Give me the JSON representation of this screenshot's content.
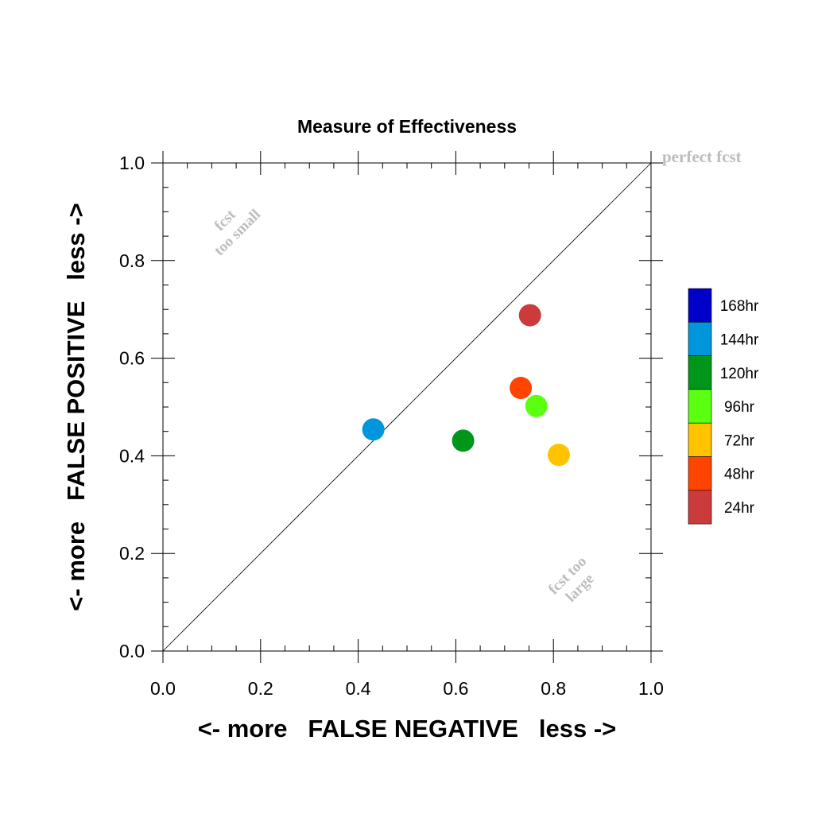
{
  "chart_data": {
    "type": "scatter",
    "title": "Measure of Effectiveness",
    "xlabel": "<- more   FALSE NEGATIVE   less ->",
    "ylabel": "<- more   FALSE POSITIVE   less ->",
    "xlim": [
      0.0,
      1.0
    ],
    "ylim": [
      0.0,
      1.0
    ],
    "xticks": [
      "0.0",
      "0.2",
      "0.4",
      "0.6",
      "0.8",
      "1.0"
    ],
    "yticks": [
      "0.0",
      "0.2",
      "0.4",
      "0.6",
      "0.8",
      "1.0"
    ],
    "grid": false,
    "reference_line": [
      [
        0.0,
        0.0
      ],
      [
        1.0,
        1.0
      ]
    ],
    "annotations": {
      "perfect": "perfect fcst",
      "too_small_line1": "fcst",
      "too_small_line2": "too small",
      "too_large_line1": "fcst too",
      "too_large_line2": "large"
    },
    "legend_position": "right",
    "points": [
      {
        "name": "24hr",
        "x": 0.752,
        "y": 0.688,
        "color": "#cc3b3b"
      },
      {
        "name": "48hr",
        "x": 0.733,
        "y": 0.539,
        "color": "#ff4400"
      },
      {
        "name": "72hr",
        "x": 0.811,
        "y": 0.402,
        "color": "#ffc300"
      },
      {
        "name": "96hr",
        "x": 0.765,
        "y": 0.502,
        "color": "#5bff10"
      },
      {
        "name": "120hr",
        "x": 0.615,
        "y": 0.431,
        "color": "#00961a"
      },
      {
        "name": "144hr",
        "x": 0.431,
        "y": 0.454,
        "color": "#0096dc"
      },
      {
        "name": "168hr",
        "x": null,
        "y": null,
        "color": "#0000c8"
      }
    ],
    "legend": [
      {
        "label": "168hr",
        "color": "#0000c8"
      },
      {
        "label": "144hr",
        "color": "#0096dc"
      },
      {
        "label": "120hr",
        "color": "#00961a"
      },
      {
        "label": "96hr",
        "color": "#5bff10"
      },
      {
        "label": "72hr",
        "color": "#ffc300"
      },
      {
        "label": "48hr",
        "color": "#ff4400"
      },
      {
        "label": "24hr",
        "color": "#cc3b3b"
      }
    ]
  }
}
